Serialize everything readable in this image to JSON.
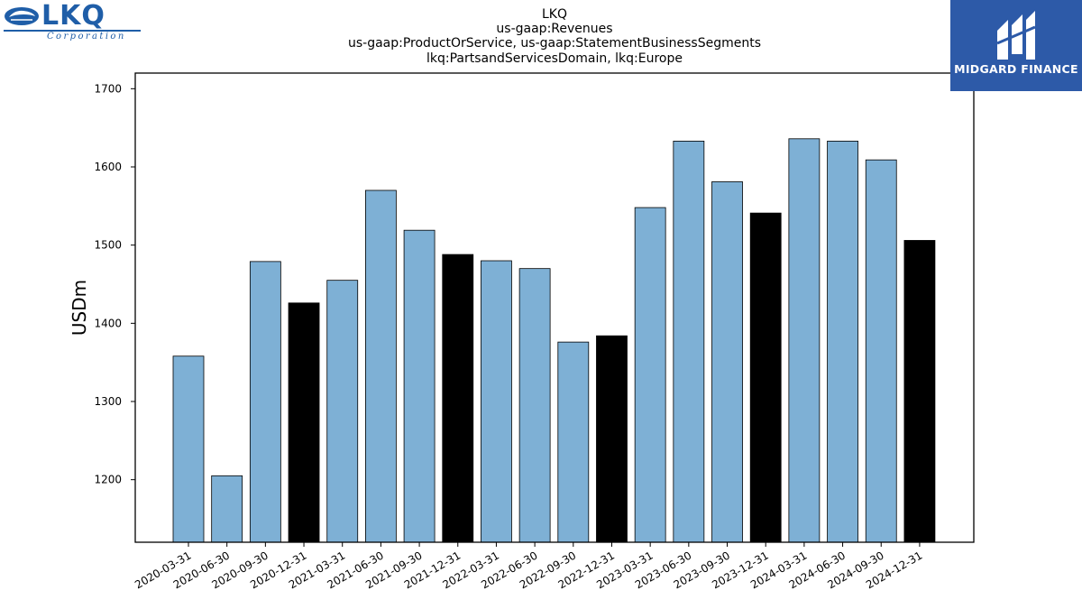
{
  "logo": {
    "word": "LKQ",
    "tagline": "Corporation"
  },
  "watermark": {
    "text": "MIDGARD FINANCE",
    "color": "#2d5aa8"
  },
  "chart_data": {
    "type": "bar",
    "title": [
      "LKQ",
      "us-gaap:Revenues",
      "us-gaap:ProductOrService, us-gaap:StatementBusinessSegments",
      "lkq:PartsandServicesDomain, lkq:Europe"
    ],
    "xlabel": "",
    "ylabel": "USDm",
    "ylim": [
      1120,
      1720
    ],
    "yticks": [
      1200,
      1300,
      1400,
      1500,
      1600,
      1700
    ],
    "grid": false,
    "categories": [
      "2020-03-31",
      "2020-06-30",
      "2020-09-30",
      "2020-12-31",
      "2021-03-31",
      "2021-06-30",
      "2021-09-30",
      "2021-12-31",
      "2022-03-31",
      "2022-06-30",
      "2022-09-30",
      "2022-12-31",
      "2023-03-31",
      "2023-06-30",
      "2023-09-30",
      "2023-12-31",
      "2024-03-31",
      "2024-06-30",
      "2024-09-30",
      "2024-12-31"
    ],
    "values": [
      1358,
      1205,
      1479,
      1426,
      1455,
      1570,
      1519,
      1488,
      1480,
      1470,
      1376,
      1384,
      1548,
      1633,
      1581,
      1541,
      1636,
      1633,
      1609,
      1506
    ],
    "colors": {
      "quarter": "#7eb0d5",
      "year_end": "#000000",
      "edge": "#000000"
    }
  }
}
